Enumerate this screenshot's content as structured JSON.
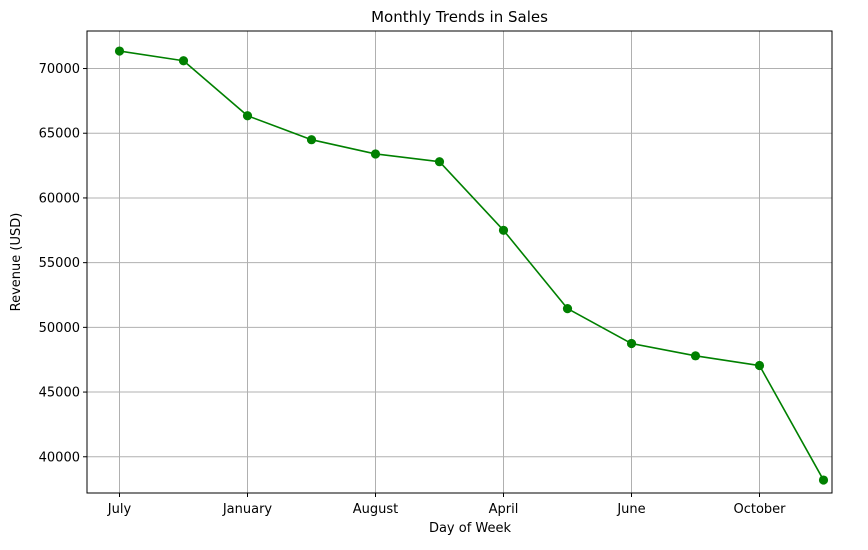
{
  "chart_data": {
    "type": "line",
    "title": "Monthly Trends in Sales",
    "xlabel": "Day of Week",
    "ylabel": "Revenue (USD)",
    "categories": [
      "July",
      "",
      "January",
      "",
      "August",
      "",
      "April",
      "",
      "June",
      "",
      "October",
      ""
    ],
    "x_tick_labels": [
      "July",
      "January",
      "August",
      "April",
      "June",
      "October"
    ],
    "series": [
      {
        "values": [
          71350,
          70600,
          66350,
          64500,
          63400,
          62800,
          57500,
          51450,
          48750,
          47800,
          47050,
          38200
        ],
        "color": "#008000",
        "marker": "circle"
      }
    ],
    "ylim": [
      37200,
      72900
    ],
    "y_ticks": [
      40000,
      45000,
      50000,
      55000,
      60000,
      65000,
      70000
    ],
    "grid": true,
    "legend": "none"
  }
}
